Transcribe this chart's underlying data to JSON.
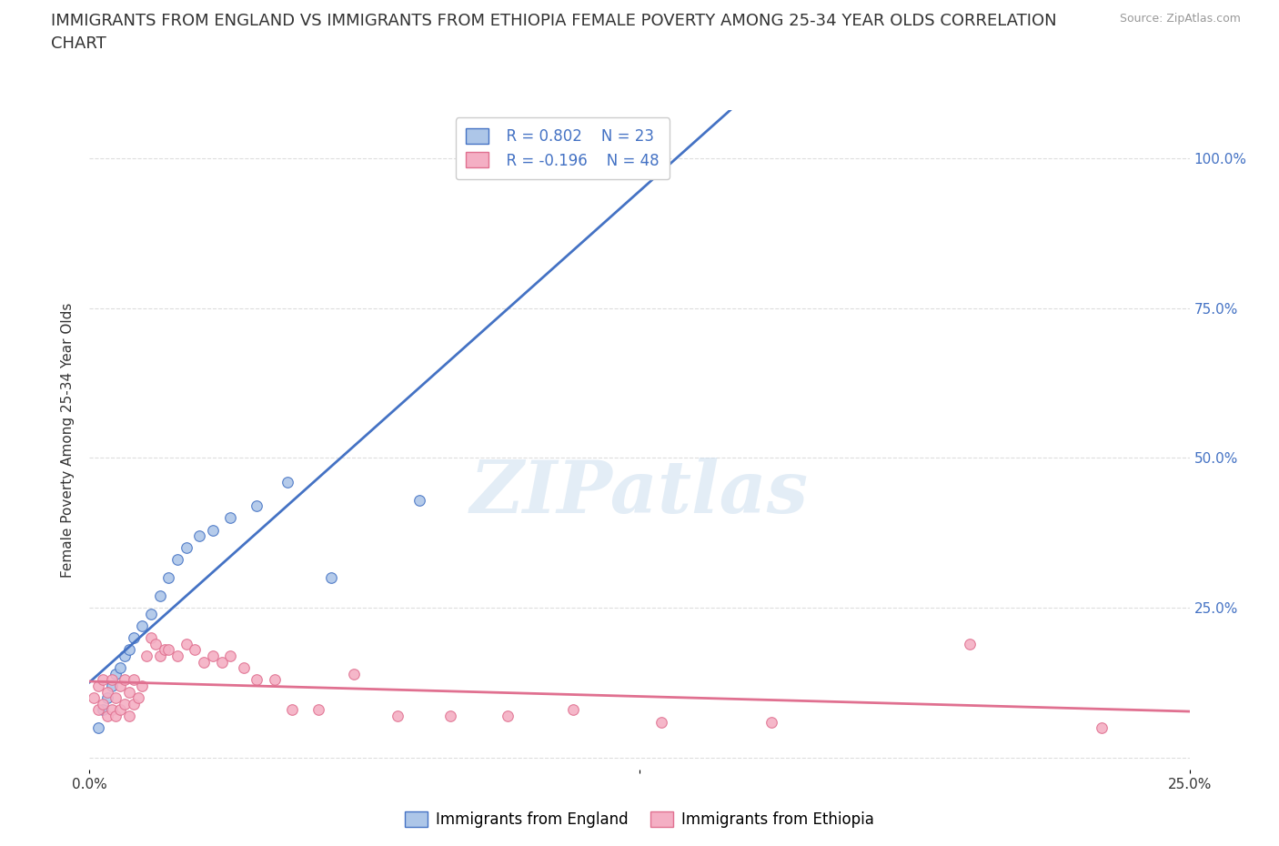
{
  "title_line1": "IMMIGRANTS FROM ENGLAND VS IMMIGRANTS FROM ETHIOPIA FEMALE POVERTY AMONG 25-34 YEAR OLDS CORRELATION",
  "title_line2": "CHART",
  "source": "Source: ZipAtlas.com",
  "ylabel": "Female Poverty Among 25-34 Year Olds",
  "xlim": [
    0.0,
    0.25
  ],
  "ylim": [
    -0.02,
    1.08
  ],
  "yticks": [
    0.0,
    0.25,
    0.5,
    0.75,
    1.0
  ],
  "ytick_labels": [
    "",
    "25.0%",
    "50.0%",
    "75.0%",
    "100.0%"
  ],
  "xticks": [
    0.0,
    0.125,
    0.25
  ],
  "xtick_labels": [
    "0.0%",
    "",
    "25.0%"
  ],
  "watermark": "ZIPatlas",
  "legend_r_england": "R = 0.802",
  "legend_n_england": "N = 23",
  "legend_r_ethiopia": "R = -0.196",
  "legend_n_ethiopia": "N = 48",
  "england_color": "#adc6e8",
  "england_line_color": "#4472c4",
  "ethiopia_color": "#f4afc4",
  "ethiopia_line_color": "#e07090",
  "england_scatter_x": [
    0.002,
    0.003,
    0.004,
    0.005,
    0.006,
    0.007,
    0.008,
    0.009,
    0.01,
    0.012,
    0.014,
    0.016,
    0.018,
    0.02,
    0.022,
    0.025,
    0.028,
    0.032,
    0.038,
    0.045,
    0.055,
    0.075,
    0.12
  ],
  "england_scatter_y": [
    0.05,
    0.08,
    0.1,
    0.12,
    0.14,
    0.15,
    0.17,
    0.18,
    0.2,
    0.22,
    0.24,
    0.27,
    0.3,
    0.33,
    0.35,
    0.37,
    0.38,
    0.4,
    0.42,
    0.46,
    0.3,
    0.43,
    1.0
  ],
  "ethiopia_scatter_x": [
    0.001,
    0.002,
    0.002,
    0.003,
    0.003,
    0.004,
    0.004,
    0.005,
    0.005,
    0.006,
    0.006,
    0.007,
    0.007,
    0.008,
    0.008,
    0.009,
    0.009,
    0.01,
    0.01,
    0.011,
    0.012,
    0.013,
    0.014,
    0.015,
    0.016,
    0.017,
    0.018,
    0.02,
    0.022,
    0.024,
    0.026,
    0.028,
    0.03,
    0.032,
    0.035,
    0.038,
    0.042,
    0.046,
    0.052,
    0.06,
    0.07,
    0.082,
    0.095,
    0.11,
    0.13,
    0.155,
    0.2,
    0.23
  ],
  "ethiopia_scatter_y": [
    0.1,
    0.08,
    0.12,
    0.09,
    0.13,
    0.07,
    0.11,
    0.08,
    0.13,
    0.07,
    0.1,
    0.08,
    0.12,
    0.09,
    0.13,
    0.07,
    0.11,
    0.09,
    0.13,
    0.1,
    0.12,
    0.17,
    0.2,
    0.19,
    0.17,
    0.18,
    0.18,
    0.17,
    0.19,
    0.18,
    0.16,
    0.17,
    0.16,
    0.17,
    0.15,
    0.13,
    0.13,
    0.08,
    0.08,
    0.14,
    0.07,
    0.07,
    0.07,
    0.08,
    0.06,
    0.06,
    0.19,
    0.05
  ],
  "background_color": "#ffffff",
  "grid_color": "#dddddd",
  "text_color": "#333333",
  "title_fontsize": 13,
  "label_fontsize": 11,
  "tick_fontsize": 11,
  "legend_fontsize": 12,
  "scatter_size": 70,
  "england_trend_x": [
    0.0,
    0.25
  ],
  "ethiopia_trend_x": [
    0.0,
    0.25
  ]
}
